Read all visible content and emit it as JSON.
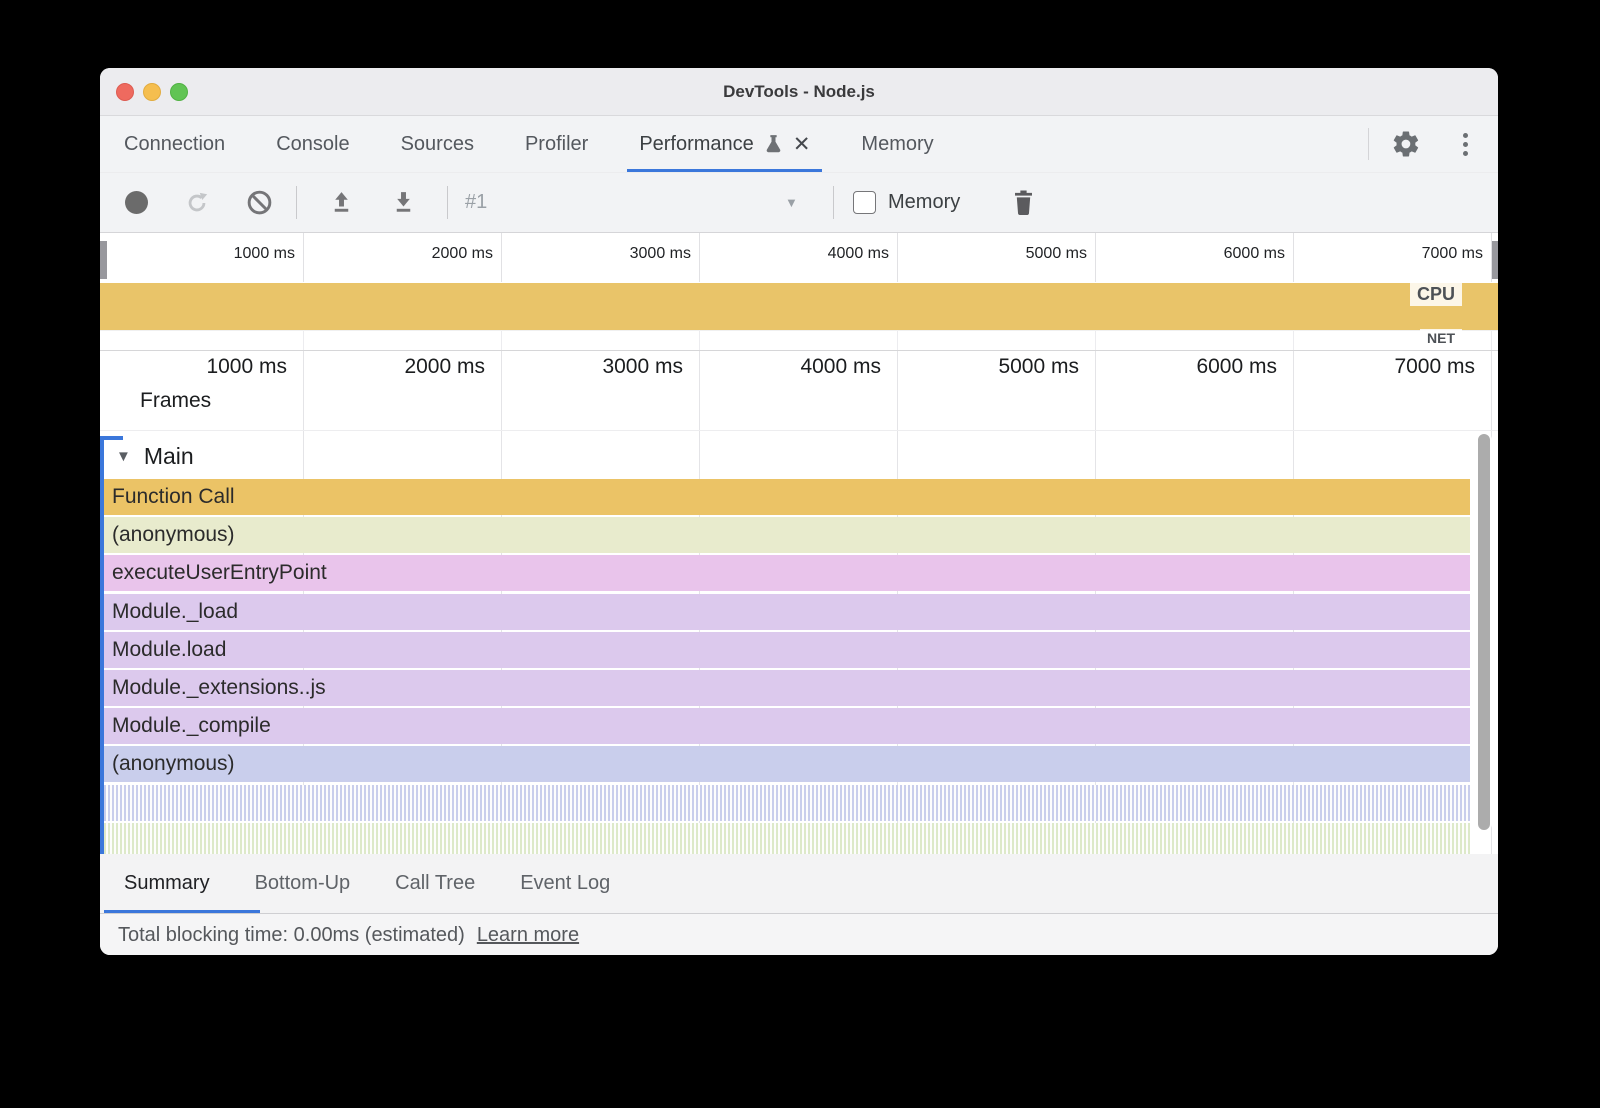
{
  "window": {
    "title": "DevTools - Node.js"
  },
  "tabbar": {
    "tabs": [
      {
        "label": "Connection",
        "active": false
      },
      {
        "label": "Console",
        "active": false
      },
      {
        "label": "Sources",
        "active": false
      },
      {
        "label": "Profiler",
        "active": false
      },
      {
        "label": "Performance",
        "active": true,
        "flask": true,
        "closable": true
      },
      {
        "label": "Memory",
        "active": false
      }
    ]
  },
  "toolbar": {
    "session_label": "#1",
    "memory_checkbox_label": "Memory",
    "memory_checked": false
  },
  "timeline": {
    "ticks": [
      "1000 ms",
      "2000 ms",
      "3000 ms",
      "4000 ms",
      "5000 ms",
      "6000 ms",
      "7000 ms"
    ],
    "cpu_label": "CPU",
    "net_label": "NET"
  },
  "flame": {
    "frames_label": "Frames",
    "main_label": "Main",
    "rows": [
      {
        "label": "Function Call",
        "color": "#EBC366"
      },
      {
        "label": "(anonymous)",
        "color": "#E8EBCD"
      },
      {
        "label": "executeUserEntryPoint",
        "color": "#E9C4EB"
      },
      {
        "label": "Module._load",
        "color": "#DCC9ED"
      },
      {
        "label": "Module.load",
        "color": "#DCC9ED"
      },
      {
        "label": "Module._extensions..js",
        "color": "#DCC9ED"
      },
      {
        "label": "Module._compile",
        "color": "#DCC9ED"
      },
      {
        "label": "(anonymous)",
        "color": "#C9CEEC"
      },
      {
        "label": "",
        "striped": "#C9CEEC"
      },
      {
        "label": "",
        "striped": "#DDE9C9"
      }
    ]
  },
  "bottom_tabs": {
    "tabs": [
      {
        "label": "Summary",
        "active": true
      },
      {
        "label": "Bottom-Up",
        "active": false
      },
      {
        "label": "Call Tree",
        "active": false
      },
      {
        "label": "Event Log",
        "active": false
      }
    ]
  },
  "statusbar": {
    "text": "Total blocking time: 0.00ms (estimated)",
    "link": "Learn more"
  },
  "icons": {
    "dropdown_arrow": "▼",
    "expand_arrow": "▼",
    "close": "✕"
  },
  "colors": {
    "accent_blue": "#3B77DB",
    "cpu_band": "#E9C469",
    "record_idle": "#6B6B6B"
  }
}
